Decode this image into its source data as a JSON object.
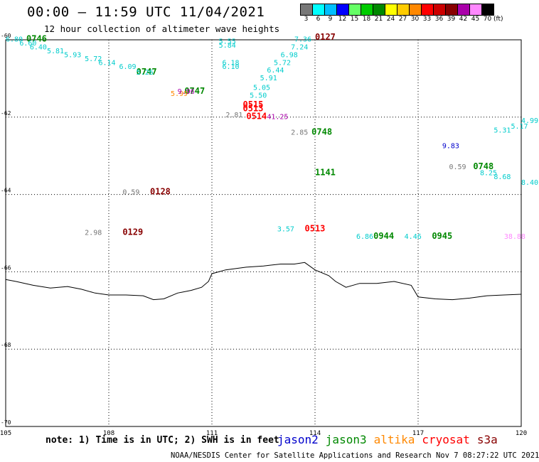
{
  "header": {
    "title": "00:00 — 11:59 UTC 11/04/2021",
    "subtitle": "12 hour collection of altimeter wave heights"
  },
  "colorbar": {
    "unit": "(ft)",
    "bins": [
      {
        "label": "3",
        "color": "#777777"
      },
      {
        "label": "6",
        "color": "#00ffff"
      },
      {
        "label": "9",
        "color": "#00bfff"
      },
      {
        "label": "12",
        "color": "#0000ff"
      },
      {
        "label": "15",
        "color": "#66ff66"
      },
      {
        "label": "18",
        "color": "#00cc00"
      },
      {
        "label": "21",
        "color": "#008800"
      },
      {
        "label": "24",
        "color": "#ffff00"
      },
      {
        "label": "27",
        "color": "#ffcc00"
      },
      {
        "label": "30",
        "color": "#ff8800"
      },
      {
        "label": "33",
        "color": "#ff0000"
      },
      {
        "label": "36",
        "color": "#cc0000"
      },
      {
        "label": "39",
        "color": "#880000"
      },
      {
        "label": "42",
        "color": "#aa00aa"
      },
      {
        "label": "45",
        "color": "#ff88ff"
      },
      {
        "label": "70",
        "color": "#000000"
      }
    ]
  },
  "map": {
    "xlim": [
      105,
      120
    ],
    "ylim": [
      -70,
      -60
    ],
    "x_ticks": [
      "105",
      "108",
      "111",
      "114",
      "117",
      "120"
    ],
    "y_ticks": [
      "-60",
      "-62",
      "-64",
      "-66",
      "-68",
      "-70"
    ],
    "grid": "dotted",
    "coastline": [
      [
        105.0,
        -66.2
      ],
      [
        105.3,
        -66.25
      ],
      [
        105.8,
        -66.35
      ],
      [
        106.3,
        -66.42
      ],
      [
        106.8,
        -66.38
      ],
      [
        107.2,
        -66.45
      ],
      [
        107.6,
        -66.55
      ],
      [
        108.0,
        -66.6
      ],
      [
        108.5,
        -66.6
      ],
      [
        109.0,
        -66.62
      ],
      [
        109.3,
        -66.72
      ],
      [
        109.6,
        -66.7
      ],
      [
        110.0,
        -66.55
      ],
      [
        110.4,
        -66.48
      ],
      [
        110.7,
        -66.4
      ],
      [
        110.9,
        -66.25
      ],
      [
        111.0,
        -66.05
      ],
      [
        111.4,
        -65.95
      ],
      [
        112.0,
        -65.88
      ],
      [
        112.5,
        -65.85
      ],
      [
        113.0,
        -65.8
      ],
      [
        113.4,
        -65.8
      ],
      [
        113.7,
        -65.76
      ],
      [
        114.0,
        -65.95
      ],
      [
        114.4,
        -66.1
      ],
      [
        114.6,
        -66.25
      ],
      [
        114.9,
        -66.4
      ],
      [
        115.3,
        -66.3
      ],
      [
        115.8,
        -66.3
      ],
      [
        116.3,
        -66.25
      ],
      [
        116.8,
        -66.35
      ],
      [
        117.0,
        -66.65
      ],
      [
        117.5,
        -66.7
      ],
      [
        118.0,
        -66.72
      ],
      [
        118.5,
        -66.68
      ],
      [
        119.0,
        -66.62
      ],
      [
        119.5,
        -66.6
      ],
      [
        120.0,
        -66.58
      ]
    ],
    "credit": "NOAA/NESDIS Center for Satellite Applications and Research   Nov  7 08:27:22 UTC 2021"
  },
  "chart_data": {
    "type": "scatter",
    "title": "12 hour collection of altimeter wave heights",
    "xlim": [
      105,
      120
    ],
    "ylim": [
      -70,
      -60
    ],
    "series": [
      {
        "name": "jason2",
        "color": "#0000cc",
        "points": [
          {
            "lon": 117.7,
            "lat": -62.8,
            "label": "9.83"
          }
        ]
      },
      {
        "name": "jason3",
        "color": "#008800",
        "points": [
          {
            "lon": 105.6,
            "lat": -60.05,
            "label": "0746"
          },
          {
            "lon": 108.8,
            "lat": -60.9,
            "label": "0747"
          },
          {
            "lon": 110.2,
            "lat": -61.4,
            "label": "0747"
          },
          {
            "lon": 113.9,
            "lat": -62.45,
            "label": "0748"
          },
          {
            "lon": 114.0,
            "lat": -63.5,
            "label": "1141"
          },
          {
            "lon": 115.7,
            "lat": -65.15,
            "label": "0944"
          },
          {
            "lon": 117.4,
            "lat": -65.15,
            "label": "0945"
          },
          {
            "lon": 118.6,
            "lat": -63.35,
            "label": "0748"
          }
        ]
      },
      {
        "name": "altika",
        "color": "#ff8800",
        "points": [
          {
            "lon": 109.8,
            "lat": -61.45,
            "label": "5.99"
          }
        ]
      },
      {
        "name": "cryosat",
        "color": "#ff0000",
        "points": [
          {
            "lon": 111.9,
            "lat": -61.75,
            "label": "0515"
          },
          {
            "lon": 111.9,
            "lat": -61.85,
            "label": "0513"
          },
          {
            "lon": 112.0,
            "lat": -62.05,
            "label": "0514"
          },
          {
            "lon": 113.7,
            "lat": -64.95,
            "label": "0513"
          }
        ]
      },
      {
        "name": "s3a",
        "color": "#880000",
        "points": [
          {
            "lon": 114.0,
            "lat": -60.0,
            "label": "0127"
          },
          {
            "lon": 109.2,
            "lat": -64.0,
            "label": "0128"
          },
          {
            "lon": 108.4,
            "lat": -65.05,
            "label": "0129"
          }
        ]
      },
      {
        "name": "swh-gray",
        "color": "#777777",
        "points": [
          {
            "lon": 107.3,
            "lat": -65.05,
            "label": "2.98"
          },
          {
            "lon": 108.4,
            "lat": -64.0,
            "label": "0.59"
          },
          {
            "lon": 111.4,
            "lat": -62.0,
            "label": "2.81"
          },
          {
            "lon": 113.3,
            "lat": -62.45,
            "label": "2.85"
          },
          {
            "lon": 117.9,
            "lat": -63.35,
            "label": "0.59"
          }
        ]
      },
      {
        "name": "swh-cyan",
        "color": "#00cccc",
        "points": [
          {
            "lon": 105.0,
            "lat": -60.05,
            "label": "6.80"
          },
          {
            "lon": 105.4,
            "lat": -60.15,
            "label": "6.60"
          },
          {
            "lon": 105.7,
            "lat": -60.25,
            "label": "6.40"
          },
          {
            "lon": 106.2,
            "lat": -60.35,
            "label": "5.81"
          },
          {
            "lon": 106.7,
            "lat": -60.45,
            "label": "5.93"
          },
          {
            "lon": 107.3,
            "lat": -60.55,
            "label": "5.72"
          },
          {
            "lon": 107.7,
            "lat": -60.65,
            "label": "6.14"
          },
          {
            "lon": 108.3,
            "lat": -60.75,
            "label": "6.09"
          },
          {
            "lon": 108.8,
            "lat": -60.9,
            "label": "5.26"
          },
          {
            "lon": 111.2,
            "lat": -60.1,
            "label": "5.55"
          },
          {
            "lon": 111.2,
            "lat": -60.2,
            "label": "5.84"
          },
          {
            "lon": 111.3,
            "lat": -60.65,
            "label": "6.18"
          },
          {
            "lon": 111.3,
            "lat": -60.75,
            "label": "6.10"
          },
          {
            "lon": 113.4,
            "lat": -60.05,
            "label": "7.36"
          },
          {
            "lon": 113.3,
            "lat": -60.25,
            "label": "7.24"
          },
          {
            "lon": 113.0,
            "lat": -60.45,
            "label": "6.98"
          },
          {
            "lon": 112.8,
            "lat": -60.65,
            "label": "5.72"
          },
          {
            "lon": 112.6,
            "lat": -60.85,
            "label": "6.44"
          },
          {
            "lon": 112.4,
            "lat": -61.05,
            "label": "5.91"
          },
          {
            "lon": 112.2,
            "lat": -61.3,
            "label": "5.05"
          },
          {
            "lon": 112.1,
            "lat": -61.5,
            "label": "5.50"
          },
          {
            "lon": 112.9,
            "lat": -64.95,
            "label": "3.57"
          },
          {
            "lon": 115.2,
            "lat": -65.15,
            "label": "6.86"
          },
          {
            "lon": 116.6,
            "lat": -65.15,
            "label": "4.46"
          },
          {
            "lon": 119.2,
            "lat": -62.4,
            "label": "5.31"
          },
          {
            "lon": 119.7,
            "lat": -62.3,
            "label": "5.17"
          },
          {
            "lon": 120.0,
            "lat": -62.15,
            "label": "4.99"
          },
          {
            "lon": 118.8,
            "lat": -63.5,
            "label": "8.25"
          },
          {
            "lon": 119.2,
            "lat": -63.6,
            "label": "8.68"
          },
          {
            "lon": 120.0,
            "lat": -63.75,
            "label": "8.40"
          }
        ]
      },
      {
        "name": "swh-purple",
        "color": "#aa00aa",
        "points": [
          {
            "lon": 110.0,
            "lat": -61.4,
            "label": "9.96"
          },
          {
            "lon": 112.6,
            "lat": -62.05,
            "label": "41.25"
          }
        ]
      },
      {
        "name": "swh-pink",
        "color": "#ff88ff",
        "points": [
          {
            "lon": 119.5,
            "lat": -65.15,
            "label": "38.88"
          }
        ]
      }
    ],
    "legend": [
      "jason2",
      "jason3",
      "altika",
      "cryosat",
      "s3a"
    ]
  },
  "footer": {
    "note": "note: 1) Time is in UTC; 2) SWH is in feet",
    "satellites": [
      {
        "name": "jason2",
        "color": "#0000cc"
      },
      {
        "name": "jason3",
        "color": "#008800"
      },
      {
        "name": "altika",
        "color": "#ff8800"
      },
      {
        "name": "cryosat",
        "color": "#ff0000"
      },
      {
        "name": "s3a",
        "color": "#880000"
      }
    ]
  }
}
